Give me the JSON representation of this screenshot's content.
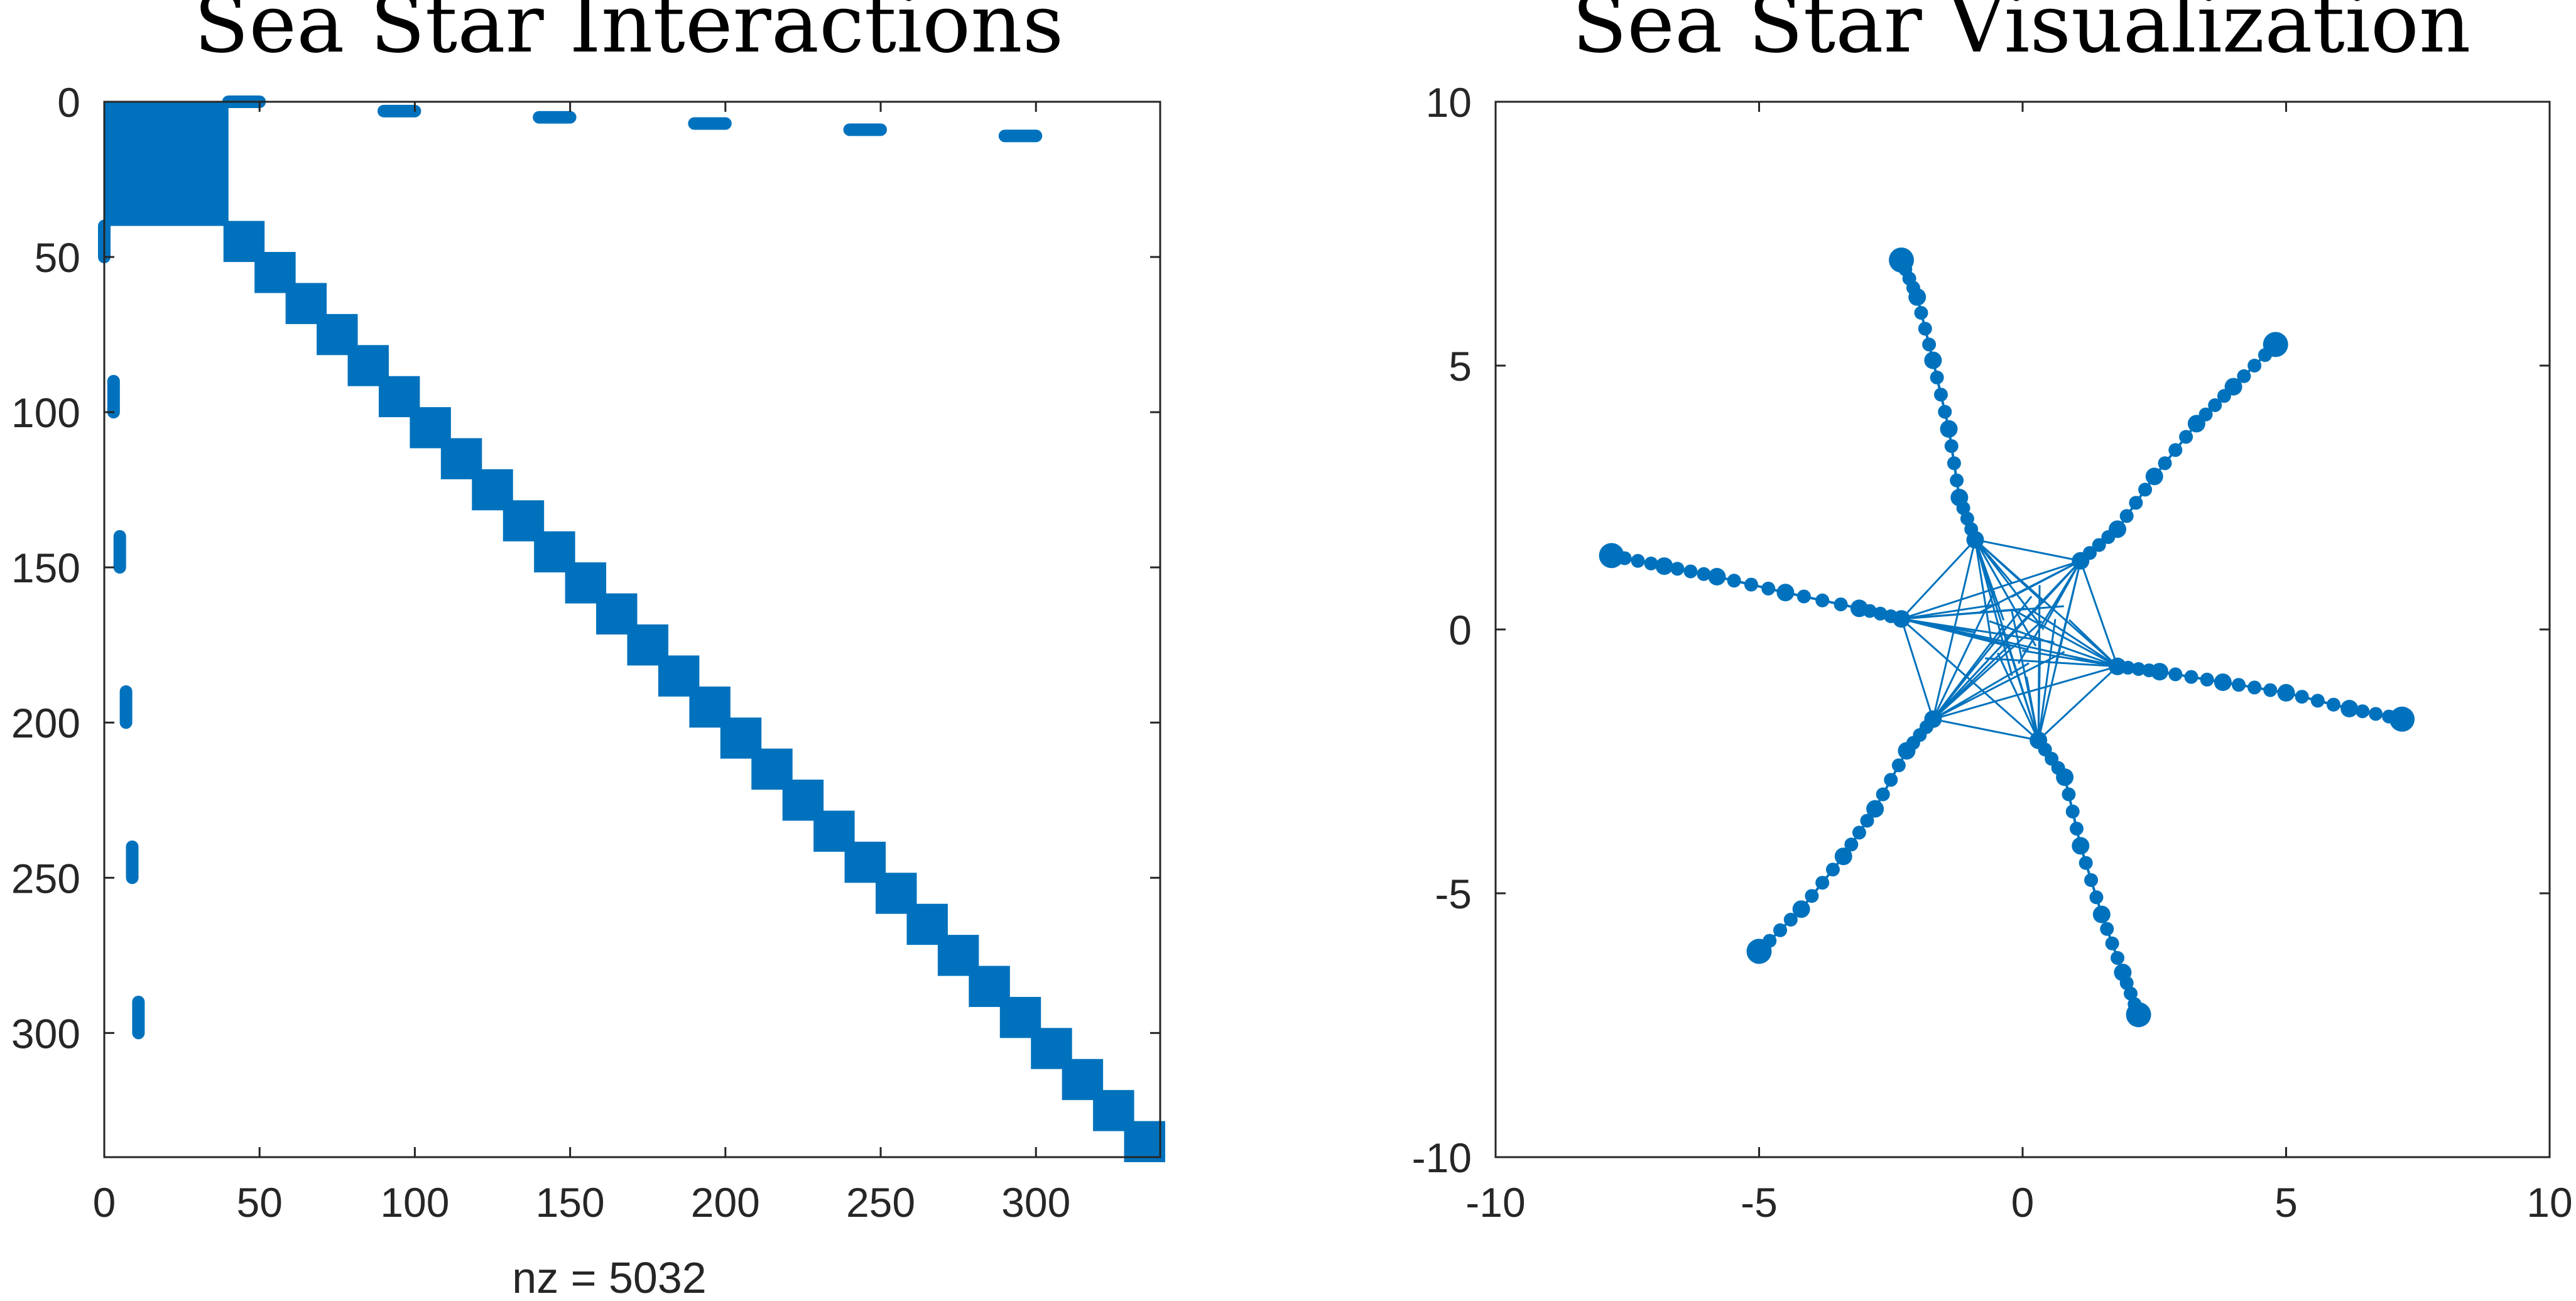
{
  "chart_data": [
    {
      "type": "scatter",
      "title": "Sea Star Interactions",
      "xlabel": "nz = 5032",
      "ylabel": "",
      "xlim": [
        0,
        340
      ],
      "ylim": [
        340,
        0
      ],
      "y_reversed": true,
      "xticks": [
        "0",
        "50",
        "100",
        "150",
        "200",
        "250",
        "300"
      ],
      "yticks": [
        "0",
        "50",
        "100",
        "150",
        "200",
        "250",
        "300"
      ],
      "color": "#0072BD",
      "grid": false,
      "matrix_size": 340,
      "nnz": 5032,
      "blocks": [
        {
          "row0": 0,
          "row1": 40,
          "col0": 0,
          "col1": 40
        }
      ],
      "diagonal_blocks": {
        "start": 40,
        "end": 340,
        "block_size": 10
      },
      "row_segments": [
        {
          "row": 0,
          "col0": 40,
          "col1": 50
        },
        {
          "row": 3,
          "col0": 90,
          "col1": 100
        },
        {
          "row": 5,
          "col0": 140,
          "col1": 150
        },
        {
          "row": 7,
          "col0": 190,
          "col1": 200
        },
        {
          "row": 9,
          "col0": 240,
          "col1": 250
        },
        {
          "row": 11,
          "col0": 290,
          "col1": 300
        }
      ],
      "col_segments": [
        {
          "col": 0,
          "row0": 40,
          "row1": 50
        },
        {
          "col": 3,
          "row0": 90,
          "row1": 100
        },
        {
          "col": 5,
          "row0": 140,
          "row1": 150
        },
        {
          "col": 7,
          "row0": 190,
          "row1": 200
        },
        {
          "col": 9,
          "row0": 240,
          "row1": 250
        },
        {
          "col": 11,
          "row0": 290,
          "row1": 300
        }
      ]
    },
    {
      "type": "line",
      "title": "Sea Star Visualization",
      "xlabel": "",
      "ylabel": "",
      "xlim": [
        -10,
        10
      ],
      "ylim": [
        -10,
        10
      ],
      "xticks": [
        "-10",
        "-5",
        "0",
        "5",
        "10"
      ],
      "yticks": [
        "10",
        "5",
        "0",
        "-5",
        "-10"
      ],
      "color": "#0072BD",
      "grid": false,
      "ring_nodes": [
        {
          "x": -0.9,
          "y": 1.7
        },
        {
          "x": 1.1,
          "y": 1.3
        },
        {
          "x": 1.8,
          "y": -0.7
        },
        {
          "x": 0.3,
          "y": -2.1
        },
        {
          "x": -1.7,
          "y": -1.7
        },
        {
          "x": -2.3,
          "y": 0.2
        }
      ],
      "arms": [
        [
          {
            "x": -0.9,
            "y": 1.7
          },
          {
            "x": -1.2,
            "y": 2.5
          },
          {
            "x": -1.4,
            "y": 3.8
          },
          {
            "x": -1.7,
            "y": 5.1
          },
          {
            "x": -2.0,
            "y": 6.3
          },
          {
            "x": -2.3,
            "y": 7.0
          }
        ],
        [
          {
            "x": 1.1,
            "y": 1.3
          },
          {
            "x": 1.8,
            "y": 1.9
          },
          {
            "x": 2.5,
            "y": 2.9
          },
          {
            "x": 3.3,
            "y": 3.9
          },
          {
            "x": 4.0,
            "y": 4.6
          },
          {
            "x": 4.8,
            "y": 5.4
          }
        ],
        [
          {
            "x": 1.8,
            "y": -0.7
          },
          {
            "x": 2.6,
            "y": -0.8
          },
          {
            "x": 3.8,
            "y": -1.0
          },
          {
            "x": 5.0,
            "y": -1.2
          },
          {
            "x": 6.2,
            "y": -1.5
          },
          {
            "x": 7.2,
            "y": -1.7
          }
        ],
        [
          {
            "x": 0.3,
            "y": -2.1
          },
          {
            "x": 0.8,
            "y": -2.8
          },
          {
            "x": 1.1,
            "y": -4.1
          },
          {
            "x": 1.5,
            "y": -5.4
          },
          {
            "x": 1.9,
            "y": -6.5
          },
          {
            "x": 2.2,
            "y": -7.3
          }
        ],
        [
          {
            "x": -1.7,
            "y": -1.7
          },
          {
            "x": -2.2,
            "y": -2.3
          },
          {
            "x": -2.8,
            "y": -3.4
          },
          {
            "x": -3.4,
            "y": -4.3
          },
          {
            "x": -4.2,
            "y": -5.3
          },
          {
            "x": -5.0,
            "y": -6.1
          }
        ],
        [
          {
            "x": -2.3,
            "y": 0.2
          },
          {
            "x": -3.1,
            "y": 0.4
          },
          {
            "x": -4.5,
            "y": 0.7
          },
          {
            "x": -5.8,
            "y": 1.0
          },
          {
            "x": -6.8,
            "y": 1.2
          },
          {
            "x": -7.8,
            "y": 1.4
          }
        ]
      ]
    }
  ]
}
